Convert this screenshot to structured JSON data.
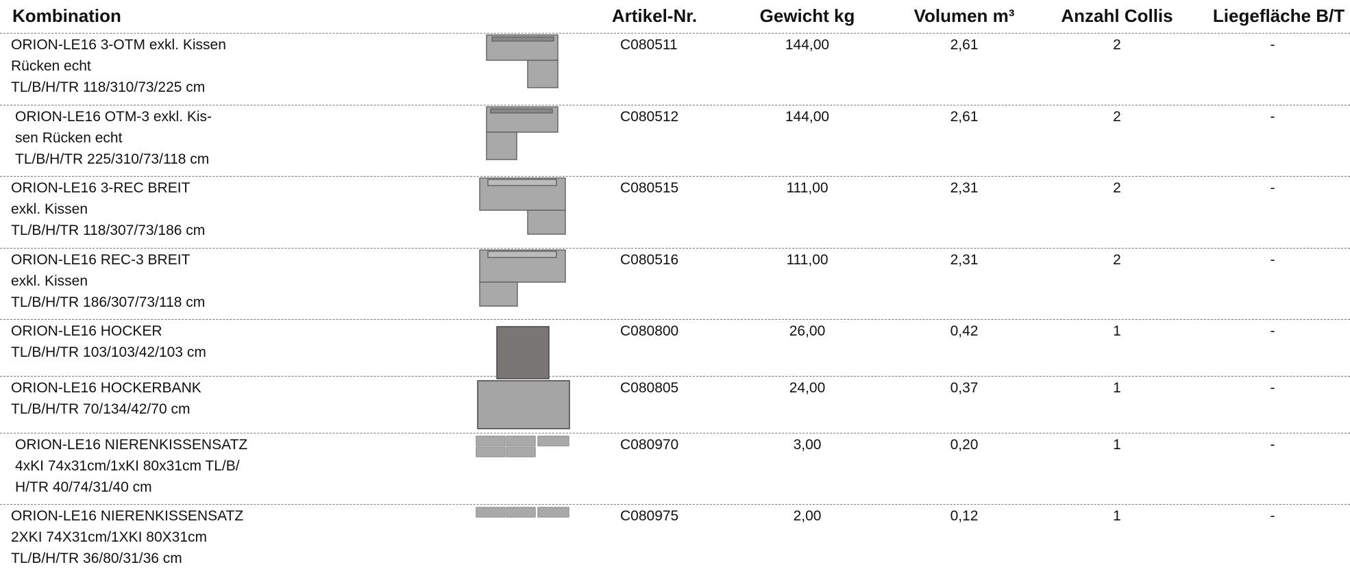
{
  "header": {
    "columns": [
      "Kombination",
      "Artikel-Nr.",
      "Gewicht kg",
      "Volumen m³",
      "Anzahl Collis",
      "Liegefläche B/T"
    ]
  },
  "rows": [
    {
      "description": [
        "ORION-LE16 3-OTM exkl. Kissen",
        "Rücken echt",
        "TL/B/H/TR 118/310/73/225 cm"
      ],
      "article": "C080511",
      "weight": "144,00",
      "volume": "2,61",
      "collis": "2",
      "area": "-"
    },
    {
      "description": [
        "ORION-LE16 OTM-3 exkl. Kis-",
        "sen Rücken echt",
        "TL/B/H/TR 225/310/73/118 cm"
      ],
      "article": "C080512",
      "weight": "144,00",
      "volume": "2,61",
      "collis": "2",
      "area": "-"
    },
    {
      "description": [
        "ORION-LE16 3-REC BREIT",
        "exkl. Kissen",
        "TL/B/H/TR 118/307/73/186 cm"
      ],
      "article": "C080515",
      "weight": "111,00",
      "volume": "2,31",
      "collis": "2",
      "area": "-"
    },
    {
      "description": [
        "ORION-LE16 REC-3 BREIT",
        "exkl. Kissen",
        "TL/B/H/TR 186/307/73/118 cm"
      ],
      "article": "C080516",
      "weight": "111,00",
      "volume": "2,31",
      "collis": "2",
      "area": "-"
    },
    {
      "description": [
        "ORION-LE16 HOCKER",
        "TL/B/H/TR 103/103/42/103 cm"
      ],
      "article": "C080800",
      "weight": "26,00",
      "volume": "0,42",
      "collis": "1",
      "area": "-"
    },
    {
      "description": [
        "ORION-LE16 HOCKERBANK",
        "TL/B/H/TR 70/134/42/70 cm"
      ],
      "article": "C080805",
      "weight": "24,00",
      "volume": "0,37",
      "collis": "1",
      "area": "-"
    },
    {
      "description": [
        "ORION-LE16 NIERENKISSENSATZ",
        "4xKI 74x31cm/1xKI 80x31cm TL/B/",
        "H/TR 40/74/31/40 cm"
      ],
      "article": "C080970",
      "weight": "3,00",
      "volume": "0,20",
      "collis": "1",
      "area": "-"
    },
    {
      "description": [
        "ORION-LE16 NIERENKISSENSATZ",
        "2XKI 74X31cm/1XKI 80X31cm",
        "TL/B/H/TR 36/80/31/36 cm"
      ],
      "article": "C080975",
      "weight": "2,00",
      "volume": "0,12",
      "collis": "1",
      "area": "-"
    }
  ]
}
